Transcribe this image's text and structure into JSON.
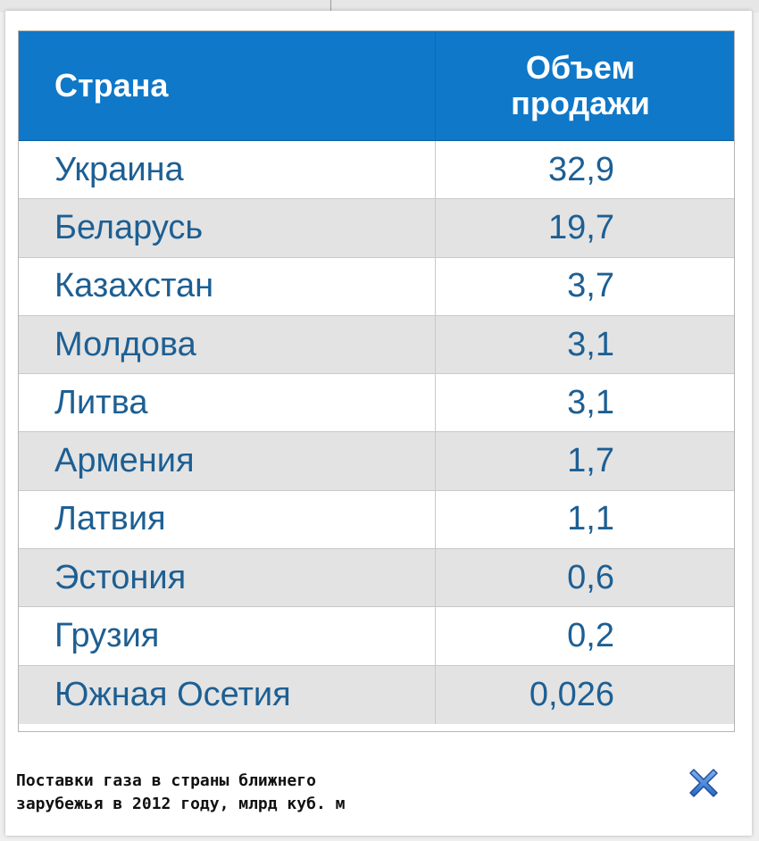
{
  "table": {
    "headers": {
      "country": "Страна",
      "volume_line1": "Объем",
      "volume_line2": "продажи"
    },
    "rows": [
      {
        "country": "Украина",
        "volume": "32,9"
      },
      {
        "country": "Беларусь",
        "volume": "19,7"
      },
      {
        "country": "Казахстан",
        "volume": "3,7"
      },
      {
        "country": "Молдова",
        "volume": "3,1"
      },
      {
        "country": "Литва",
        "volume": "3,1"
      },
      {
        "country": "Армения",
        "volume": "1,7"
      },
      {
        "country": "Латвия",
        "volume": "1,1"
      },
      {
        "country": "Эстония",
        "volume": "0,6"
      },
      {
        "country": "Грузия",
        "volume": "0,2"
      },
      {
        "country": "Южная Осетия",
        "volume": "0,026"
      }
    ]
  },
  "caption": {
    "line1": "Поставки газа в страны ближнего",
    "line2": "зарубежья в 2012 году, млрд куб. м"
  },
  "close_icon": "close-icon",
  "colors": {
    "header_bg": "#0f78c8",
    "cell_text": "#1d5f93",
    "alt_row_bg": "#e3e3e3",
    "close_icon": "#3d7fd1"
  }
}
